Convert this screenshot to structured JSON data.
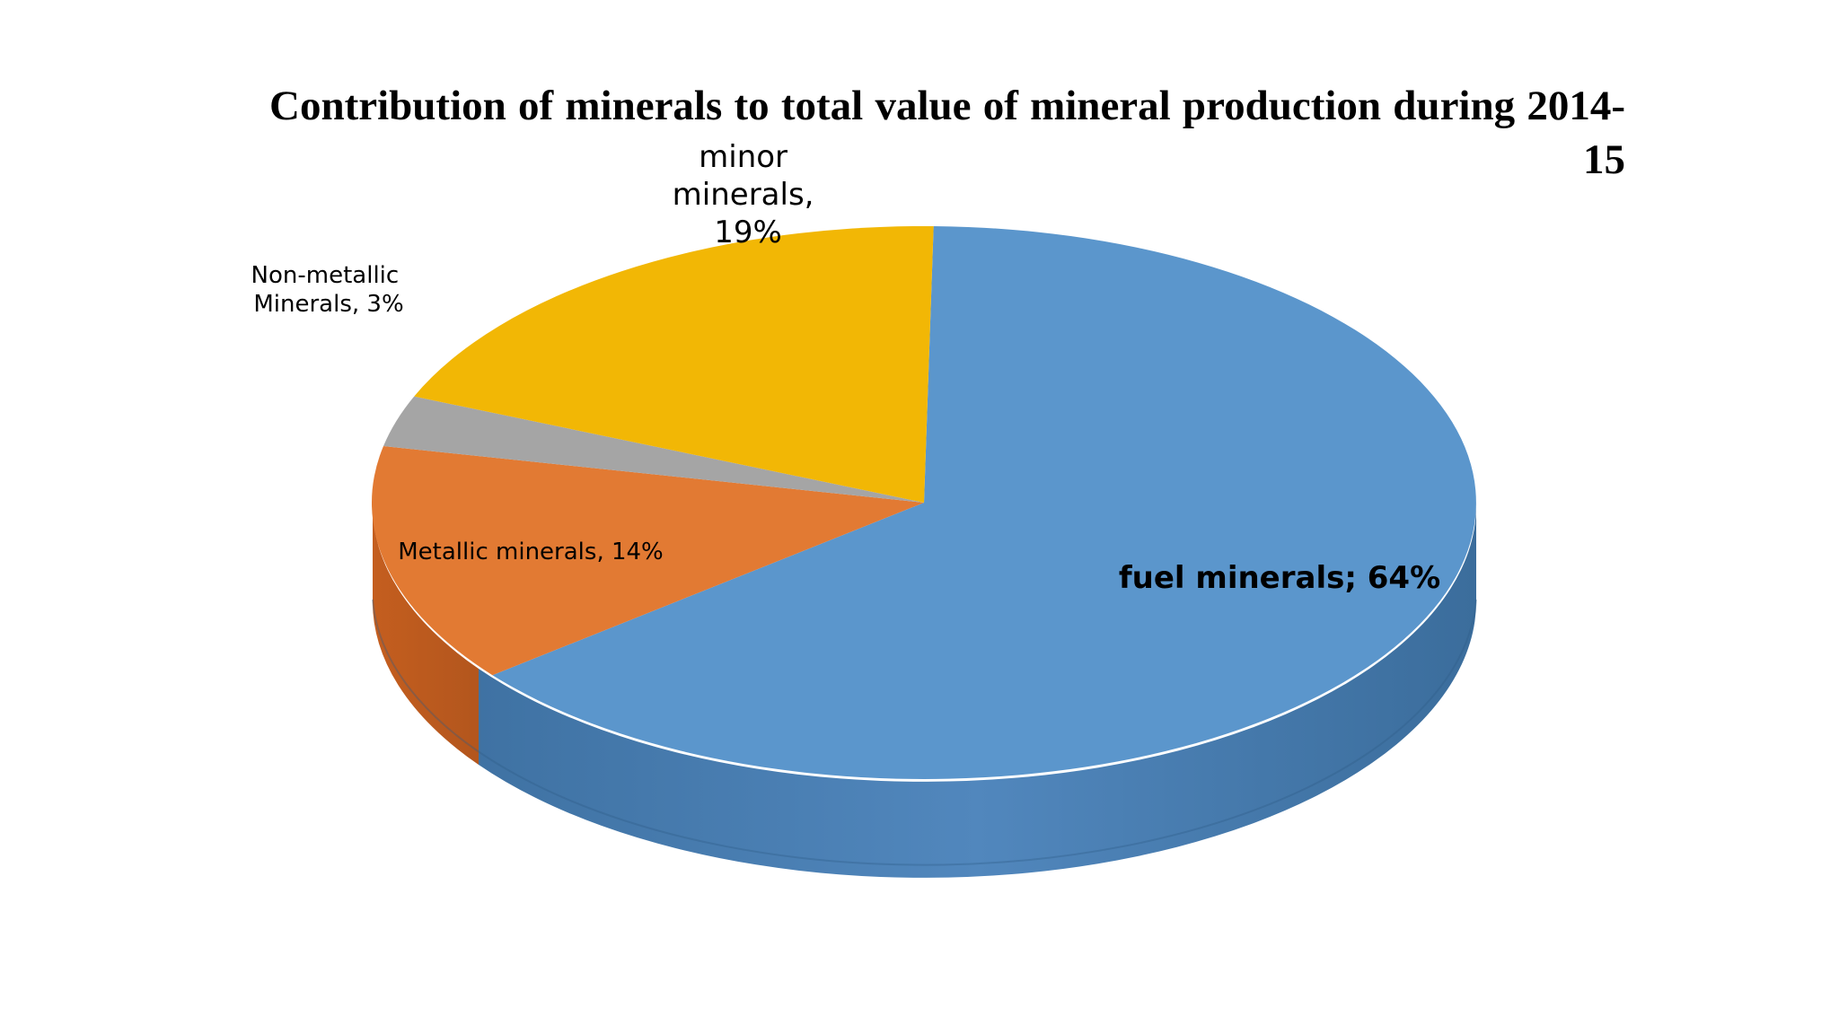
{
  "chart_data": {
    "type": "pie",
    "title": "Contribution of minerals to total value of mineral production during 2014-15",
    "series": [
      {
        "name": "fuel minerals",
        "value": 64,
        "color": "#5b96cc",
        "label": "fuel minerals; 64%"
      },
      {
        "name": "Metallic minerals",
        "value": 14,
        "color": "#e27a33",
        "label": "Metallic minerals, 14%"
      },
      {
        "name": "Non-metallic Minerals",
        "value": 3,
        "color": "#a5a5a5",
        "label_lines": [
          "Non-metallic",
          "Minerals, 3%"
        ]
      },
      {
        "name": "minor minerals",
        "value": 19,
        "color": "#f2b705",
        "label_lines": [
          "minor",
          "minerals,",
          "19%"
        ]
      }
    ],
    "legend": "none",
    "style": "3d"
  }
}
